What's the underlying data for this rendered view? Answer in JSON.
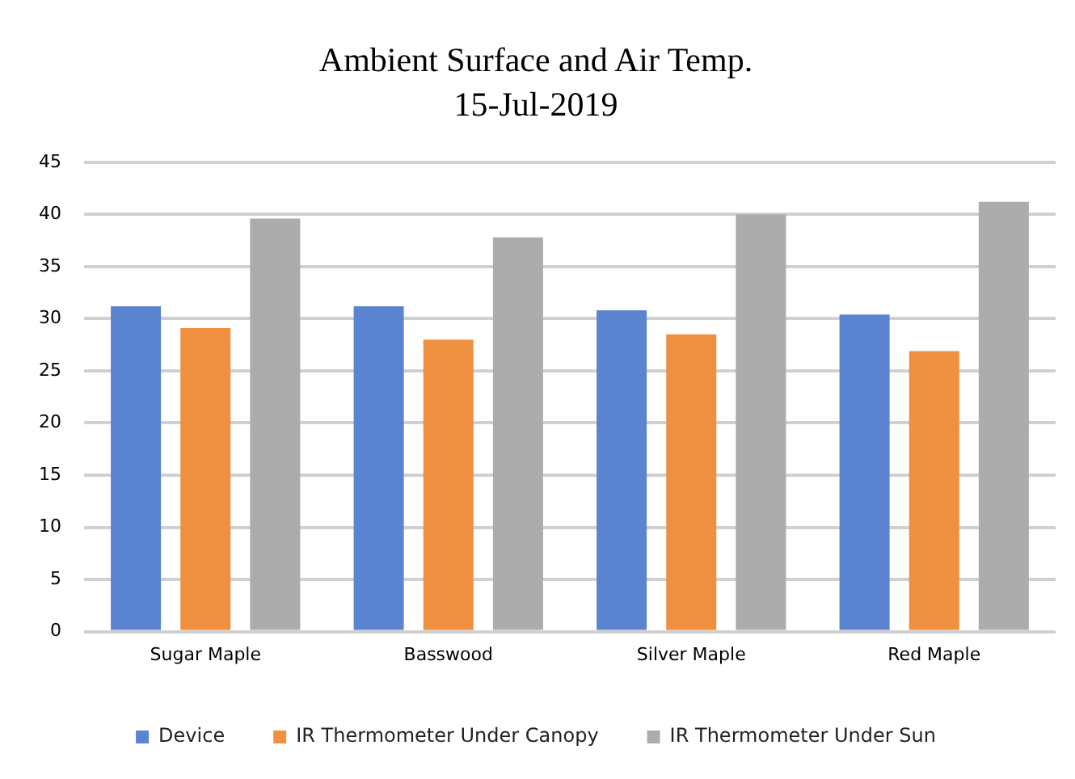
{
  "chart_data": {
    "type": "bar",
    "title": "Ambient Surface and Air Temp.",
    "subtitle": "15-Jul-2019",
    "categories": [
      "Sugar Maple",
      "Basswood",
      "Silver Maple",
      "Red Maple"
    ],
    "series": [
      {
        "name": "Device",
        "color": "#5a84d0",
        "values": [
          31.2,
          31.2,
          30.8,
          30.4
        ]
      },
      {
        "name": "IR Thermometer Under Canopy",
        "color": "#ee9040",
        "values": [
          29.1,
          28.0,
          28.5,
          26.9
        ]
      },
      {
        "name": "IR Thermometer Under Sun",
        "color": "#acacac",
        "values": [
          39.6,
          37.8,
          40.0,
          41.2
        ]
      }
    ],
    "ylim": [
      0,
      45
    ],
    "yticks": [
      0,
      5,
      10,
      15,
      20,
      25,
      30,
      35,
      40,
      45
    ],
    "grid": "y",
    "legend": "bottom"
  }
}
